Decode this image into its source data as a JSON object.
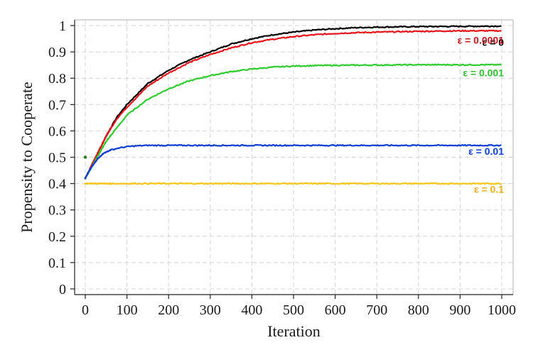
{
  "chart_data": {
    "type": "line",
    "title": "",
    "xlabel": "Iteration",
    "ylabel": "Propensity to Cooperate",
    "xlim": [
      0,
      1000
    ],
    "ylim": [
      0,
      1
    ],
    "grid": true,
    "xticks": [
      "0",
      "100",
      "200",
      "300",
      "400",
      "500",
      "600",
      "700",
      "800",
      "900",
      "1000"
    ],
    "yticks": [
      "0",
      "0.1",
      "0.2",
      "0.3",
      "0.4",
      "0.5",
      "0.6",
      "0.7",
      "0.8",
      "0.9",
      "1"
    ],
    "series": [
      {
        "name": "ε = 0",
        "color": "#000000",
        "x": [
          0,
          25,
          50,
          75,
          100,
          150,
          200,
          250,
          300,
          350,
          400,
          450,
          500,
          550,
          600,
          650,
          700,
          800,
          900,
          1000
        ],
        "y": [
          0.42,
          0.5,
          0.58,
          0.65,
          0.7,
          0.78,
          0.83,
          0.87,
          0.9,
          0.93,
          0.95,
          0.965,
          0.975,
          0.983,
          0.988,
          0.992,
          0.994,
          0.996,
          0.997,
          0.998
        ]
      },
      {
        "name": "ε = 0.0001",
        "color": "#e8141a",
        "x": [
          0,
          25,
          50,
          75,
          100,
          150,
          200,
          250,
          300,
          350,
          400,
          450,
          500,
          550,
          600,
          650,
          700,
          800,
          900,
          1000
        ],
        "y": [
          0.42,
          0.5,
          0.58,
          0.645,
          0.69,
          0.77,
          0.82,
          0.86,
          0.89,
          0.915,
          0.935,
          0.948,
          0.958,
          0.965,
          0.97,
          0.973,
          0.975,
          0.978,
          0.98,
          0.98
        ]
      },
      {
        "name": "ε = 0.001",
        "color": "#2ecc2e",
        "x": [
          0,
          25,
          50,
          75,
          100,
          150,
          200,
          250,
          300,
          350,
          400,
          450,
          500,
          550,
          600,
          700,
          800,
          900,
          1000
        ],
        "y": [
          0.42,
          0.49,
          0.56,
          0.61,
          0.66,
          0.72,
          0.76,
          0.79,
          0.81,
          0.825,
          0.835,
          0.842,
          0.846,
          0.848,
          0.849,
          0.85,
          0.851,
          0.851,
          0.851
        ]
      },
      {
        "name": "ε = 0.01",
        "color": "#0a3cd6",
        "x": [
          0,
          10,
          20,
          30,
          40,
          50,
          60,
          80,
          100,
          120,
          150,
          200,
          300,
          400,
          500,
          600,
          700,
          800,
          900,
          1000
        ],
        "y": [
          0.42,
          0.45,
          0.475,
          0.495,
          0.51,
          0.52,
          0.527,
          0.535,
          0.54,
          0.543,
          0.545,
          0.545,
          0.545,
          0.545,
          0.545,
          0.545,
          0.545,
          0.545,
          0.545,
          0.545
        ]
      },
      {
        "name": "ε = 0.1",
        "color": "#f5c518",
        "x": [
          0,
          100,
          200,
          300,
          400,
          500,
          600,
          700,
          800,
          900,
          1000
        ],
        "y": [
          0.4,
          0.4,
          0.4,
          0.4,
          0.4,
          0.4,
          0.4,
          0.4,
          0.4,
          0.4,
          0.4
        ]
      }
    ],
    "start_marker": {
      "x": 0,
      "y": 0.5
    }
  },
  "series_label_colors": [
    "#000000",
    "#c0181c",
    "#2fbf2f",
    "#0a3cd6",
    "#f0ad10"
  ]
}
